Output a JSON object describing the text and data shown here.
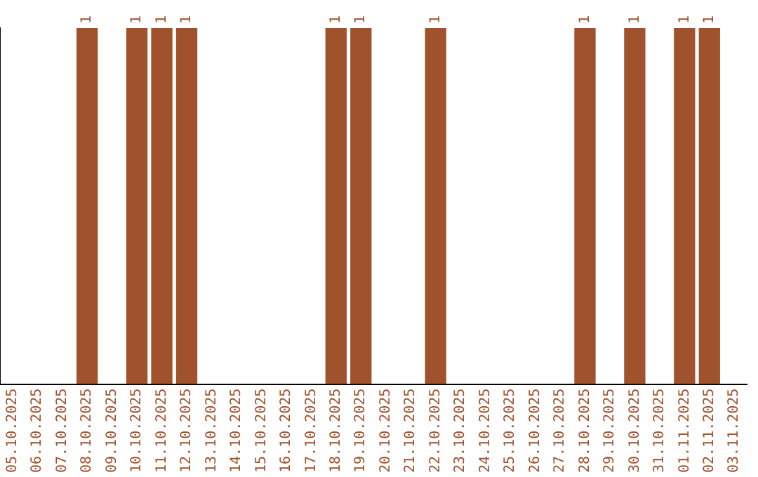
{
  "chart_data": {
    "type": "bar",
    "categories": [
      "05.10.2025",
      "06.10.2025",
      "07.10.2025",
      "08.10.2025",
      "09.10.2025",
      "10.10.2025",
      "11.10.2025",
      "12.10.2025",
      "13.10.2025",
      "14.10.2025",
      "15.10.2025",
      "16.10.2025",
      "17.10.2025",
      "18.10.2025",
      "19.10.2025",
      "20.10.2025",
      "21.10.2025",
      "22.10.2025",
      "23.10.2025",
      "24.10.2025",
      "25.10.2025",
      "26.10.2025",
      "27.10.2025",
      "28.10.2025",
      "29.10.2025",
      "30.10.2025",
      "31.10.2025",
      "01.11.2025",
      "02.11.2025",
      "03.11.2025"
    ],
    "values": [
      0,
      0,
      0,
      1,
      0,
      1,
      1,
      1,
      0,
      0,
      0,
      0,
      0,
      1,
      1,
      0,
      0,
      1,
      0,
      0,
      0,
      0,
      0,
      1,
      0,
      1,
      0,
      1,
      1,
      0
    ],
    "value_labels": [
      null,
      null,
      null,
      "1",
      null,
      "1",
      "1",
      "1",
      null,
      null,
      null,
      null,
      null,
      "1",
      "1",
      null,
      null,
      "1",
      null,
      null,
      null,
      null,
      null,
      "1",
      null,
      "1",
      null,
      "1",
      "1",
      null
    ],
    "color": "#a0522d",
    "grid": false,
    "legend": false,
    "tick_labels": "x"
  }
}
